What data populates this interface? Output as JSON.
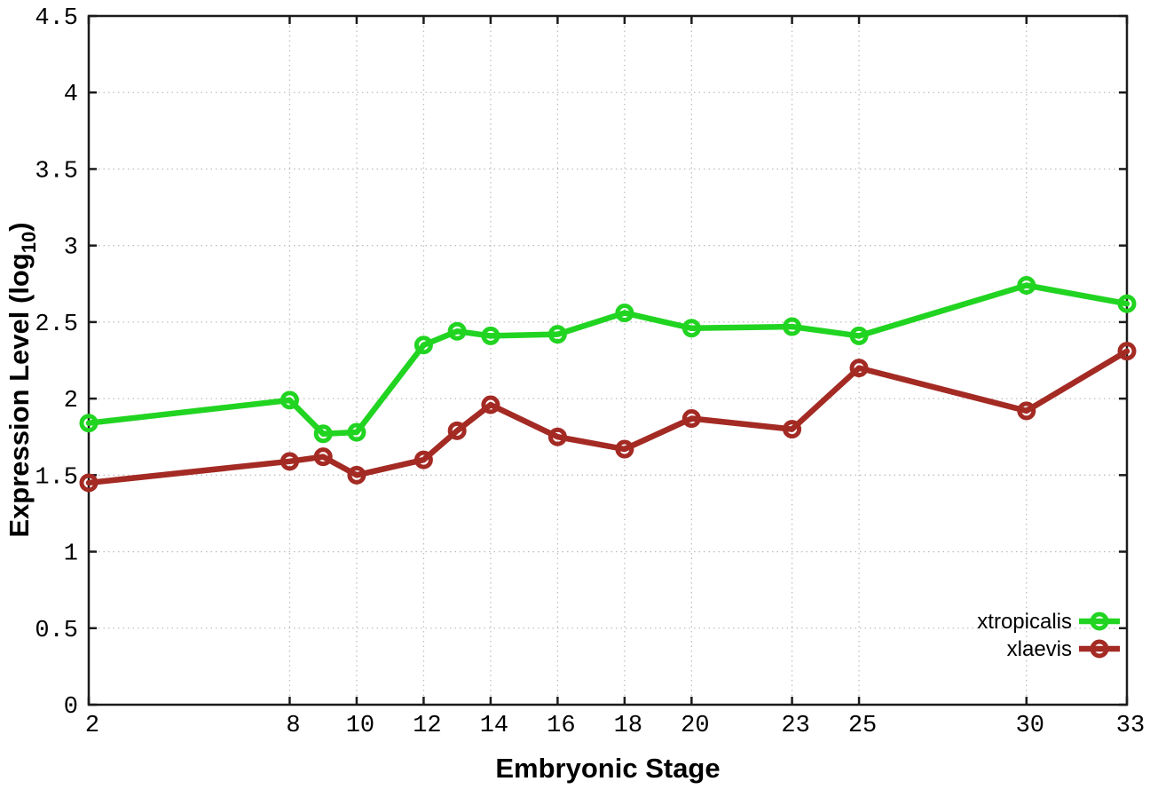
{
  "chart_data": {
    "type": "line",
    "title": "",
    "x_axis": {
      "title": "Embryonic Stage",
      "range": [
        2,
        33
      ],
      "ticks": [
        2,
        8,
        10,
        12,
        14,
        16,
        18,
        20,
        23,
        25,
        30,
        33
      ],
      "tick_labels": [
        "2",
        "8",
        "10",
        "12",
        "14",
        "16",
        "18",
        "20",
        "23",
        "25",
        "30",
        "33"
      ]
    },
    "y_axis": {
      "title": "Expression Level (log10)",
      "title_parts": {
        "main": "Expression Level (log",
        "sub": "10",
        "close": ")"
      },
      "range": [
        0,
        4.5
      ],
      "ticks": [
        0,
        0.5,
        1,
        1.5,
        2,
        2.5,
        3,
        3.5,
        4,
        4.5
      ],
      "tick_labels": [
        "0",
        "0.5",
        "1",
        "1.5",
        "2",
        "2.5",
        "3",
        "3.5",
        "4",
        "4.5"
      ]
    },
    "x": [
      2,
      8,
      9,
      10,
      12,
      13,
      14,
      16,
      18,
      20,
      23,
      25,
      30,
      33
    ],
    "series": [
      {
        "name": "xtropicalis",
        "color": "#21d421",
        "values": [
          1.84,
          1.99,
          1.77,
          1.78,
          2.35,
          2.44,
          2.41,
          2.42,
          2.56,
          2.46,
          2.47,
          2.41,
          2.74,
          2.62
        ]
      },
      {
        "name": "xlaevis",
        "color": "#a42a24",
        "values": [
          1.45,
          1.59,
          1.62,
          1.5,
          1.6,
          1.79,
          1.96,
          1.75,
          1.67,
          1.87,
          1.8,
          2.2,
          1.92,
          2.31
        ]
      }
    ],
    "grid": true,
    "legend_position": "inside-bottom-right",
    "colors": {
      "background": "#ffffff",
      "grid": "#bfbfbf",
      "axis": "#1b1b1b",
      "text": "#000000"
    },
    "marker": "open-circle"
  }
}
